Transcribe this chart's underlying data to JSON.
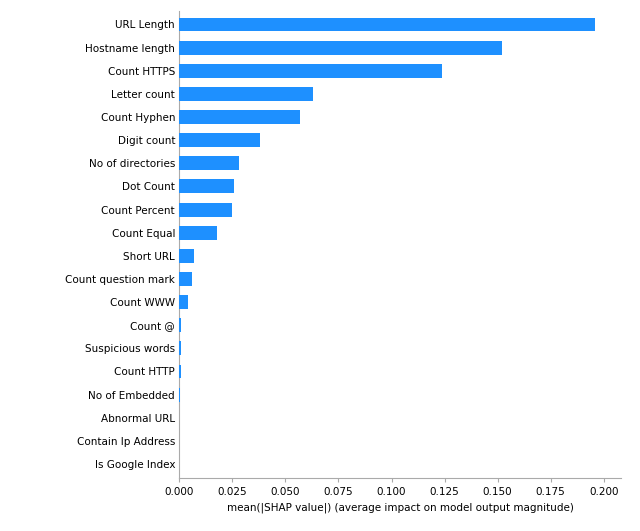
{
  "features": [
    "URL Length",
    "Hostname length",
    "Count HTTPS",
    "Letter count",
    "Count Hyphen",
    "Digit count",
    "No of directories",
    "Dot Count",
    "Count Percent",
    "Count Equal",
    "Short URL",
    "Count question mark",
    "Count WWW",
    "Count @",
    "Suspicious words",
    "Count HTTP",
    "No of Embedded",
    "Abnormal URL",
    "Contain Ip Address",
    "Is Google Index"
  ],
  "values": [
    0.196,
    0.152,
    0.124,
    0.063,
    0.057,
    0.038,
    0.028,
    0.026,
    0.025,
    0.018,
    0.007,
    0.006,
    0.004,
    0.001,
    0.0008,
    0.0007,
    0.0002,
    0.0001,
    5e-05,
    2e-05
  ],
  "bar_color": "#1E90FF",
  "xlabel": "mean(|SHAP value|) (average impact on model output magnitude)",
  "xlim": [
    0,
    0.208
  ],
  "xticks": [
    0.0,
    0.025,
    0.05,
    0.075,
    0.1,
    0.125,
    0.15,
    0.175,
    0.2
  ],
  "xtick_labels": [
    "0.000",
    "0.025",
    "0.050",
    "0.075",
    "0.100",
    "0.125",
    "0.150",
    "0.175",
    "0.200"
  ],
  "background_color": "#ffffff",
  "figure_width": 6.4,
  "figure_height": 5.31,
  "dpi": 100,
  "bar_height": 0.6,
  "fontsize_ticks": 7.5,
  "fontsize_xlabel": 7.5,
  "spine_color": "#aaaaaa"
}
